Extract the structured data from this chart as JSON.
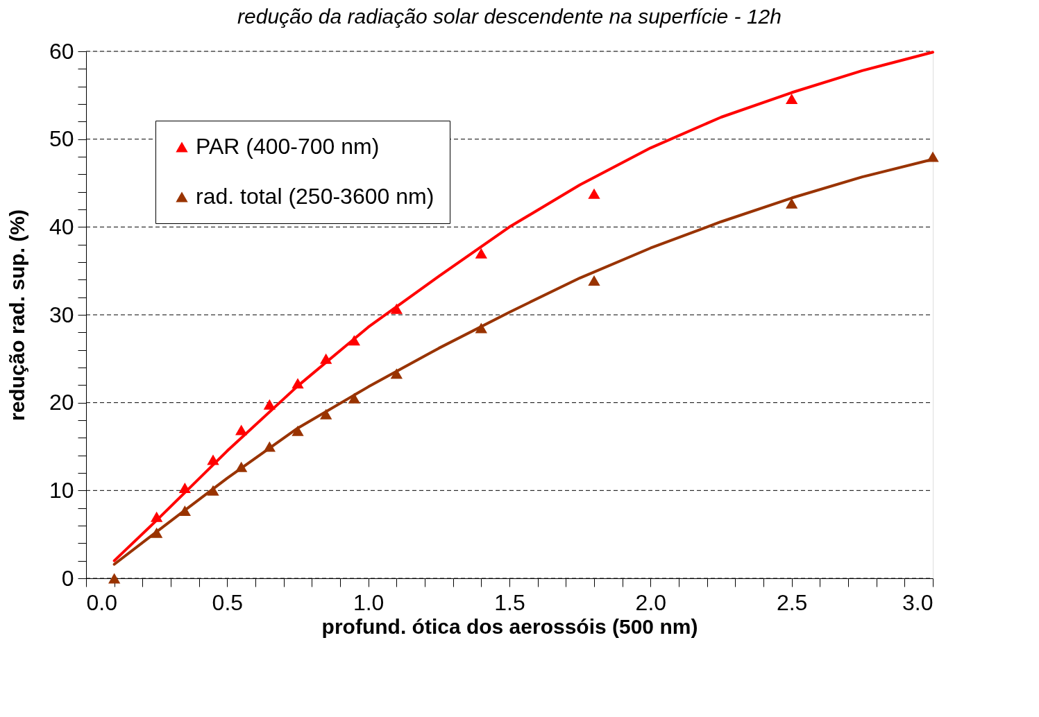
{
  "chart_data": {
    "type": "scatter",
    "title": "redução da radiação solar descendente na superfície - 12h",
    "xlabel": "profund. ótica dos aerossóis (500 nm)",
    "ylabel": "redução rad. sup. (%)",
    "xlim": [
      0,
      3
    ],
    "ylim": [
      0,
      60
    ],
    "xticks": [
      {
        "value": 0,
        "label": "0.0"
      },
      {
        "value": 0.1,
        "label": null
      },
      {
        "value": 0.2,
        "label": null
      },
      {
        "value": 0.3,
        "label": null
      },
      {
        "value": 0.4,
        "label": null
      },
      {
        "value": 0.5,
        "label": "0.5"
      },
      {
        "value": 0.6,
        "label": null
      },
      {
        "value": 0.7,
        "label": null
      },
      {
        "value": 0.8,
        "label": null
      },
      {
        "value": 0.9,
        "label": null
      },
      {
        "value": 1,
        "label": "1.0"
      },
      {
        "value": 1.1,
        "label": null
      },
      {
        "value": 1.2,
        "label": null
      },
      {
        "value": 1.3,
        "label": null
      },
      {
        "value": 1.4,
        "label": null
      },
      {
        "value": 1.5,
        "label": "1.5"
      },
      {
        "value": 1.6,
        "label": null
      },
      {
        "value": 1.7,
        "label": null
      },
      {
        "value": 1.8,
        "label": null
      },
      {
        "value": 1.9,
        "label": null
      },
      {
        "value": 2,
        "label": "2.0"
      },
      {
        "value": 2.1,
        "label": null
      },
      {
        "value": 2.2,
        "label": null
      },
      {
        "value": 2.3,
        "label": null
      },
      {
        "value": 2.4,
        "label": null
      },
      {
        "value": 2.5,
        "label": "2.5"
      },
      {
        "value": 2.6,
        "label": null
      },
      {
        "value": 2.7,
        "label": null
      },
      {
        "value": 2.8,
        "label": null
      },
      {
        "value": 2.9,
        "label": null
      },
      {
        "value": 3,
        "label": "3.0"
      }
    ],
    "yticks": [
      0,
      {
        "value": 2,
        "label": null
      },
      {
        "value": 4,
        "label": null
      },
      {
        "value": 6,
        "label": null
      },
      {
        "value": 8,
        "label": null
      },
      10,
      {
        "value": 12,
        "label": null
      },
      {
        "value": 14,
        "label": null
      },
      {
        "value": 16,
        "label": null
      },
      {
        "value": 18,
        "label": null
      },
      20,
      {
        "value": 22,
        "label": null
      },
      {
        "value": 24,
        "label": null
      },
      {
        "value": 26,
        "label": null
      },
      {
        "value": 28,
        "label": null
      },
      30,
      {
        "value": 32,
        "label": null
      },
      {
        "value": 34,
        "label": null
      },
      {
        "value": 36,
        "label": null
      },
      {
        "value": 38,
        "label": null
      },
      40,
      {
        "value": 42,
        "label": null
      },
      {
        "value": 44,
        "label": null
      },
      {
        "value": 46,
        "label": null
      },
      {
        "value": 48,
        "label": null
      },
      50,
      {
        "value": 52,
        "label": null
      },
      {
        "value": 54,
        "label": null
      },
      {
        "value": 56,
        "label": null
      },
      {
        "value": 58,
        "label": null
      },
      60
    ],
    "grid": "y",
    "legend": "top left",
    "series": [
      {
        "name": "PAR (400-700 nm)",
        "marker": "triangle",
        "color": "#ff0000",
        "x": [
          0.25,
          0.35,
          0.45,
          0.55,
          0.65,
          0.75,
          0.85,
          0.95,
          1.1,
          1.4,
          1.8,
          2.5
        ],
        "values": [
          7.0,
          10.3,
          13.5,
          16.9,
          19.8,
          22.2,
          25.0,
          27.1,
          30.7,
          37.0,
          43.8,
          54.6
        ]
      },
      {
        "name": "rad. total (250-3600 nm)",
        "marker": "triangle",
        "color": "#993300",
        "x": [
          0.1,
          0.25,
          0.35,
          0.45,
          0.55,
          0.65,
          0.75,
          0.85,
          0.95,
          1.1,
          1.4,
          1.8,
          2.5,
          3.0
        ],
        "values": [
          0,
          5.2,
          7.7,
          10.0,
          12.7,
          15.0,
          16.8,
          18.7,
          20.5,
          23.3,
          28.5,
          33.9,
          42.7,
          48.0
        ]
      },
      {
        "type": "line",
        "color": "#ff0000",
        "x": [
          0.1,
          0.25,
          0.5,
          0.75,
          1.0,
          1.25,
          1.5,
          1.75,
          2.0,
          2.25,
          2.5,
          2.75,
          3.0
        ],
        "values": [
          2.0,
          6.6,
          14.5,
          21.9,
          28.6,
          34.4,
          40.0,
          44.8,
          49.0,
          52.5,
          55.3,
          57.8,
          59.9
        ]
      },
      {
        "type": "line",
        "color": "#993300",
        "x": [
          0.1,
          0.25,
          0.5,
          0.75,
          1.0,
          1.25,
          1.5,
          1.75,
          2.0,
          2.25,
          2.5,
          2.75,
          3.0
        ],
        "values": [
          1.6,
          5.3,
          11.4,
          17.1,
          21.8,
          26.2,
          30.3,
          34.2,
          37.6,
          40.6,
          43.3,
          45.7,
          47.7
        ]
      }
    ]
  }
}
